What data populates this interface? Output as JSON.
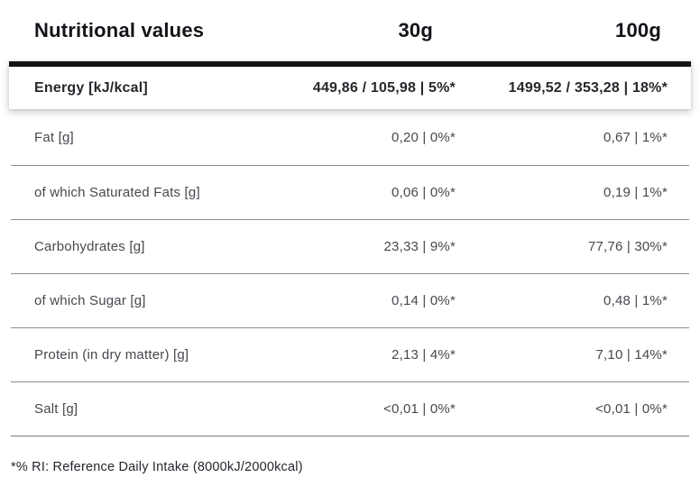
{
  "table": {
    "header": {
      "title": "Nutritional values",
      "serving_30g": "30g",
      "serving_100g": "100g"
    },
    "energy_row": {
      "label": "Energy [kJ/kcal]",
      "per_30g": "449,86 / 105,98 | 5%*",
      "per_100g": "1499,52 / 353,28 | 18%*"
    },
    "rows": [
      {
        "label": "Fat [g]",
        "per_30g": "0,20 | 0%*",
        "per_100g": "0,67 | 1%*"
      },
      {
        "label": "of which Saturated Fats [g]",
        "per_30g": "0,06 | 0%*",
        "per_100g": "0,19 | 1%*"
      },
      {
        "label": "Carbohydrates [g]",
        "per_30g": "23,33 | 9%*",
        "per_100g": "77,76 | 30%*"
      },
      {
        "label": "of which Sugar [g]",
        "per_30g": "0,14 | 0%*",
        "per_100g": "0,48 | 1%*"
      },
      {
        "label": "Protein (in dry matter) [g]",
        "per_30g": "2,13 | 4%*",
        "per_100g": "7,10 | 14%*"
      },
      {
        "label": "Salt [g]",
        "per_30g": "<0,01 | 0%*",
        "per_100g": "<0,01 | 0%*"
      }
    ],
    "footnote": "*% RI: Reference Daily Intake (8000kJ/2000kcal)"
  },
  "colors": {
    "accent_bar": "#141414",
    "divider": "#8c8d90",
    "heading_text": "#131419",
    "body_text": "#45494e",
    "footnote_text": "#26272e"
  }
}
